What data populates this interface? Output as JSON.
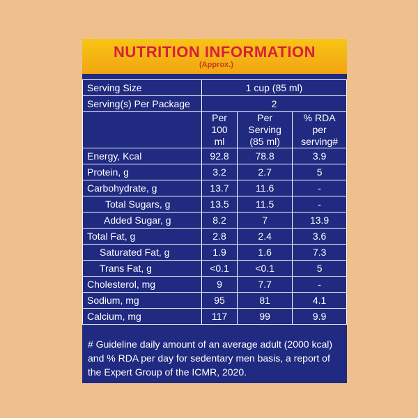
{
  "header": {
    "title": "NUTRITION INFORMATION",
    "subtitle": "(Approx.)"
  },
  "serving": {
    "size_label": "Serving Size",
    "size_value": "1 cup (85 ml)",
    "per_package_label": "Serving(s) Per Package",
    "per_package_value": "2"
  },
  "columns": {
    "per100_line1": "Per",
    "per100_line2": "100 ml",
    "perserving_line1": "Per Serving",
    "perserving_line2": "(85 ml)",
    "rda_line1": "% RDA per",
    "rda_line2": "serving#"
  },
  "rows": [
    {
      "label": "Energy, Kcal",
      "per100": "92.8",
      "perserving": "78.8",
      "rda": "3.9"
    },
    {
      "label": "Protein, g",
      "per100": "3.2",
      "perserving": "2.7",
      "rda": "5"
    },
    {
      "label": "Carbohydrate, g",
      "per100": "13.7",
      "perserving": "11.6",
      "rda": "-"
    },
    {
      "label": "Total Sugars, g",
      "per100": "13.5",
      "perserving": "11.5",
      "rda": "-"
    },
    {
      "label": "Added Sugar, g",
      "per100": "8.2",
      "perserving": "7",
      "rda": "13.9"
    },
    {
      "label": "Total Fat, g",
      "per100": "2.8",
      "perserving": "2.4",
      "rda": "3.6"
    },
    {
      "label": "Saturated Fat, g",
      "per100": "1.9",
      "perserving": "1.6",
      "rda": "7.3"
    },
    {
      "label": "Trans Fat, g",
      "per100": "<0.1",
      "perserving": "<0.1",
      "rda": "5"
    },
    {
      "label": "Cholesterol, mg",
      "per100": "9",
      "perserving": "7.7",
      "rda": "-"
    },
    {
      "label": "Sodium, mg",
      "per100": "95",
      "perserving": "81",
      "rda": "4.1"
    },
    {
      "label": "Calcium, mg",
      "per100": "117",
      "perserving": "99",
      "rda": "9.9"
    }
  ],
  "footnote": {
    "line1": "# Guideline daily amount of an average adult (2000 kcal)",
    "line2": "and % RDA per day for sedentary men basis, a report of",
    "line3": "the Expert Group of the ICMR, 2020."
  },
  "colors": {
    "background": "#efc08d",
    "panel": "#1f2a80",
    "header": "#f7c514",
    "title": "#d81f3c"
  }
}
